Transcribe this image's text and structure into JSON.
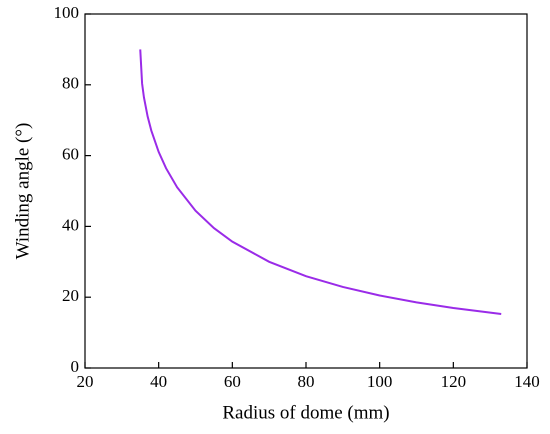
{
  "chart_data": {
    "type": "line",
    "x_label": "Radius of dome (mm)",
    "y_label": "Winding angle (°)",
    "x": [
      35,
      35.5,
      36,
      37,
      38,
      40,
      42,
      45,
      50,
      55,
      60,
      70,
      80,
      90,
      100,
      110,
      120,
      133
    ],
    "series": [
      {
        "color": "#9a2be8",
        "values": [
          90,
          80.37,
          76.45,
          71.07,
          67.08,
          61.04,
          56.44,
          51.06,
          44.43,
          39.52,
          35.69,
          30,
          25.94,
          22.89,
          20.49,
          18.55,
          16.96,
          15.26
        ]
      }
    ],
    "xlim": [
      20,
      140
    ],
    "xticks": [
      20,
      40,
      60,
      80,
      100,
      120,
      140
    ],
    "ylim": [
      0,
      100
    ],
    "yticks": [
      0,
      20,
      40,
      60,
      80,
      100
    ]
  }
}
